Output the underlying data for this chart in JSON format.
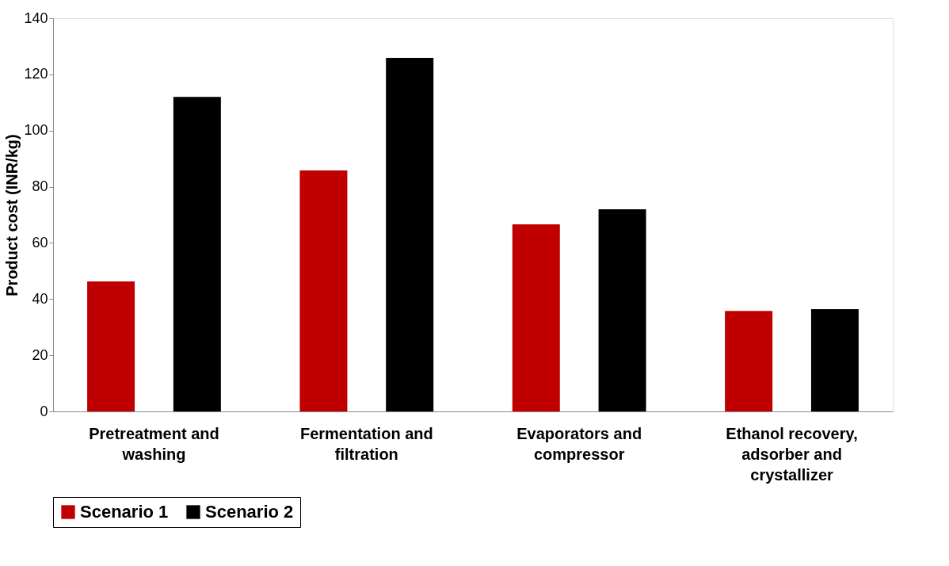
{
  "chart_data": {
    "type": "bar",
    "ylabel": "Product cost (INR/kg)",
    "categories": [
      "Pretreatment and washing",
      "Fermentation and filtration",
      "Evaporators and compressor",
      "Ethanol recovery, adsorber and crystallizer"
    ],
    "series": [
      {
        "name": "Scenario 1",
        "color": "#c00000",
        "values": [
          46.3,
          85.8,
          66.6,
          35.8
        ]
      },
      {
        "name": "Scenario 2",
        "color": "#000000",
        "values": [
          112,
          125.9,
          72,
          36.4
        ]
      }
    ],
    "ylim": [
      0,
      140
    ],
    "yticks": [
      0,
      20,
      40,
      60,
      80,
      100,
      120,
      140
    ],
    "grid": false,
    "legend": "bottom"
  }
}
